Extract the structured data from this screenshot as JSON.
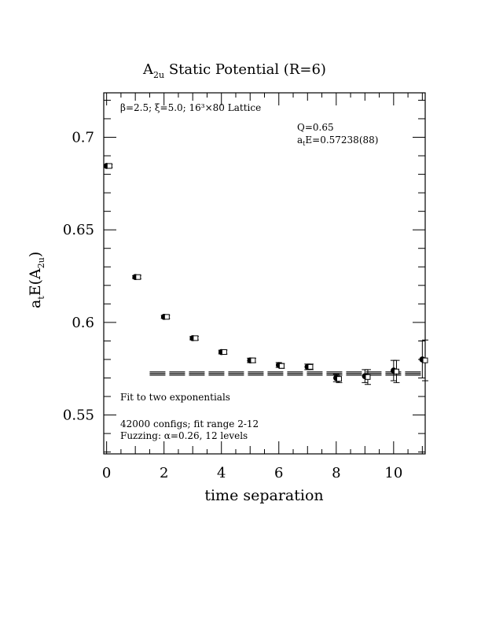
{
  "chart_data": {
    "type": "scatter",
    "title_main": "A",
    "title_sub": "2u",
    "title_rest": " Static Potential (R=6)",
    "xlabel": "time separation",
    "ylabel_main": "a",
    "ylabel_sub1": "t",
    "ylabel_mid": "E(A",
    "ylabel_sub2": "2u",
    "ylabel_end": ")",
    "xlim": [
      -0.1,
      11.1
    ],
    "ylim": [
      0.529,
      0.724
    ],
    "x_ticks": [
      0,
      2,
      4,
      6,
      8,
      10
    ],
    "x_tick_labels": [
      "0",
      "2",
      "4",
      "6",
      "8",
      "10"
    ],
    "y_ticks": [
      0.55,
      0.6,
      0.65,
      0.7
    ],
    "y_tick_labels": [
      "0.55",
      "0.6",
      "0.65",
      "0.7"
    ],
    "annotation_lattice": "β=2.5; ξ=5.0; 16³×80 Lattice",
    "annotation_q": "Q=0.65",
    "annotation_fit_main": "a",
    "annotation_fit_sub": "t",
    "annotation_fit_rest": "E=0.57238(88)",
    "annotation_fit_type": "Fit to two exponentials",
    "annotation_configs": "42000 configs; fit range 2-12",
    "annotation_fuzzing": "Fuzzing: α=0.26, 12 levels",
    "fit": {
      "value": 0.57238,
      "error": 0.00088,
      "x_start": 1.5,
      "x_end": 11.1
    },
    "series": [
      {
        "marker": "filled-circle",
        "points": [
          {
            "x": 0,
            "y": 0.6845,
            "err": 0.0007
          },
          {
            "x": 1,
            "y": 0.6245,
            "err": 0.0008
          },
          {
            "x": 2,
            "y": 0.603,
            "err": 0.0008
          },
          {
            "x": 3,
            "y": 0.5915,
            "err": 0.0009
          },
          {
            "x": 4,
            "y": 0.584,
            "err": 0.001
          },
          {
            "x": 5,
            "y": 0.5795,
            "err": 0.0012
          },
          {
            "x": 6,
            "y": 0.577,
            "err": 0.0013
          },
          {
            "x": 7,
            "y": 0.576,
            "err": 0.0015
          },
          {
            "x": 8,
            "y": 0.57,
            "err": 0.002
          },
          {
            "x": 9,
            "y": 0.571,
            "err": 0.0035
          },
          {
            "x": 10,
            "y": 0.574,
            "err": 0.0055
          },
          {
            "x": 11,
            "y": 0.58,
            "err": 0.01
          }
        ]
      },
      {
        "marker": "open-square",
        "points": [
          {
            "x": 0.1,
            "y": 0.6845,
            "err": 0.0008
          },
          {
            "x": 1.1,
            "y": 0.6245,
            "err": 0.0009
          },
          {
            "x": 2.1,
            "y": 0.603,
            "err": 0.0009
          },
          {
            "x": 3.1,
            "y": 0.5915,
            "err": 0.001
          },
          {
            "x": 4.1,
            "y": 0.584,
            "err": 0.0011
          },
          {
            "x": 5.1,
            "y": 0.5795,
            "err": 0.0012
          },
          {
            "x": 6.1,
            "y": 0.5765,
            "err": 0.0013
          },
          {
            "x": 7.1,
            "y": 0.576,
            "err": 0.0015
          },
          {
            "x": 8.1,
            "y": 0.5695,
            "err": 0.002
          },
          {
            "x": 9.1,
            "y": 0.5705,
            "err": 0.004
          },
          {
            "x": 10.1,
            "y": 0.5735,
            "err": 0.006
          },
          {
            "x": 11.1,
            "y": 0.5795,
            "err": 0.011
          }
        ]
      }
    ]
  }
}
